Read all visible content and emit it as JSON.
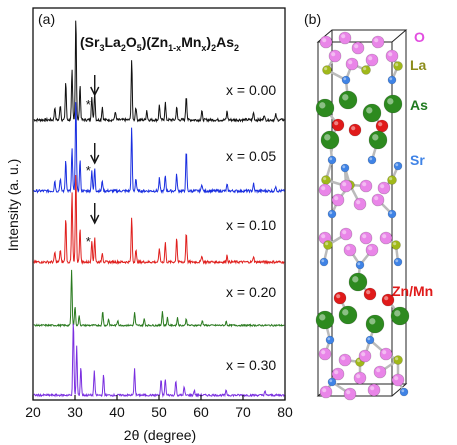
{
  "panel_a": {
    "label": "(a)",
    "title": {
      "a": "(Sr",
      "b": "3",
      "c": "La",
      "d": "2",
      "e": "O",
      "f": "5",
      "g": ")(Zn",
      "h": "1-x",
      "i": "Mn",
      "j": "x",
      "k": ")",
      "l": "2",
      "m": "As",
      "n": "2"
    },
    "xlabel": "2θ (degree)",
    "ylabel": "Intensity (a. u.)",
    "xticks": [
      "20",
      "30",
      "40",
      "50",
      "60",
      "70",
      "80"
    ]
  },
  "panel_b": {
    "label": "(b)",
    "atom_labels": [
      {
        "text": "O",
        "color": "#e24ee0"
      },
      {
        "text": "La",
        "color": "#8c8c1a"
      },
      {
        "text": "As",
        "color": "#1f7a1f"
      },
      {
        "text": "Sr",
        "color": "#3f83e6"
      },
      {
        "text": "Zn/Mn",
        "color": "#e01a1a"
      }
    ]
  },
  "chart_data": {
    "type": "line",
    "title": "(Sr3La2O5)(Zn1-xMnx)2As2",
    "xlabel": "2θ (degree)",
    "ylabel": "Intensity (a. u.)",
    "xlim": [
      20,
      80
    ],
    "series": [
      {
        "name": "x = 0.00",
        "color": "#111111",
        "peaks": [
          [
            25.2,
            0.12
          ],
          [
            26.5,
            0.14
          ],
          [
            27.8,
            0.35
          ],
          [
            29.3,
            0.45
          ],
          [
            30.2,
            0.95
          ],
          [
            31.2,
            0.32
          ],
          [
            34.0,
            0.22
          ],
          [
            34.7,
            0.26
          ],
          [
            36.5,
            0.12
          ],
          [
            39.6,
            0.08
          ],
          [
            43.5,
            0.55
          ],
          [
            44.5,
            0.12
          ],
          [
            47.1,
            0.09
          ],
          [
            50.1,
            0.14
          ],
          [
            51.5,
            0.16
          ],
          [
            54.2,
            0.12
          ],
          [
            56.5,
            0.22
          ],
          [
            60.2,
            0.08
          ],
          [
            66.2,
            0.08
          ],
          [
            72.5,
            0.07
          ],
          [
            75.0,
            0.05
          ],
          [
            77.8,
            0.05
          ]
        ]
      },
      {
        "name": "x = 0.05",
        "color": "#1a2fe0",
        "peaks": [
          [
            25.2,
            0.1
          ],
          [
            26.5,
            0.12
          ],
          [
            27.8,
            0.3
          ],
          [
            29.3,
            0.4
          ],
          [
            30.2,
            0.9
          ],
          [
            31.2,
            0.3
          ],
          [
            34.0,
            0.2
          ],
          [
            34.7,
            0.22
          ],
          [
            36.5,
            0.1
          ],
          [
            43.5,
            0.6
          ],
          [
            44.5,
            0.12
          ],
          [
            50.1,
            0.12
          ],
          [
            51.5,
            0.15
          ],
          [
            54.2,
            0.16
          ],
          [
            56.5,
            0.38
          ],
          [
            60.2,
            0.07
          ],
          [
            66.2,
            0.06
          ],
          [
            72.5,
            0.07
          ],
          [
            77.8,
            0.05
          ]
        ]
      },
      {
        "name": "x = 0.10",
        "color": "#e0201e",
        "peaks": [
          [
            25.2,
            0.1
          ],
          [
            26.5,
            0.12
          ],
          [
            27.8,
            0.45
          ],
          [
            29.3,
            0.7
          ],
          [
            30.2,
            0.9
          ],
          [
            31.2,
            0.35
          ],
          [
            34.0,
            0.22
          ],
          [
            34.7,
            0.25
          ],
          [
            36.5,
            0.1
          ],
          [
            43.5,
            0.45
          ],
          [
            44.5,
            0.12
          ],
          [
            50.1,
            0.14
          ],
          [
            51.5,
            0.2
          ],
          [
            54.2,
            0.25
          ],
          [
            56.5,
            0.3
          ],
          [
            60.2,
            0.07
          ],
          [
            66.2,
            0.07
          ],
          [
            72.5,
            0.06
          ]
        ]
      },
      {
        "name": "x = 0.20",
        "color": "#2a7a1f",
        "peaks": [
          [
            29.2,
            0.85
          ],
          [
            30.0,
            0.3
          ],
          [
            31.0,
            0.15
          ],
          [
            36.6,
            0.22
          ],
          [
            38.0,
            0.1
          ],
          [
            40.2,
            0.08
          ],
          [
            44.2,
            0.2
          ],
          [
            46.5,
            0.1
          ],
          [
            50.8,
            0.22
          ],
          [
            52.0,
            0.12
          ],
          [
            54.4,
            0.12
          ],
          [
            56.5,
            0.1
          ],
          [
            60.3,
            0.08
          ],
          [
            66.0,
            0.06
          ]
        ]
      },
      {
        "name": "x = 0.30",
        "color": "#7a2fe0",
        "peaks": [
          [
            29.6,
            0.92
          ],
          [
            30.4,
            0.6
          ],
          [
            31.4,
            0.35
          ],
          [
            34.6,
            0.3
          ],
          [
            36.8,
            0.25
          ],
          [
            44.2,
            0.32
          ],
          [
            50.5,
            0.18
          ],
          [
            51.5,
            0.2
          ],
          [
            54.0,
            0.18
          ],
          [
            56.0,
            0.1
          ],
          [
            58.4,
            0.06
          ],
          [
            66.0,
            0.06
          ],
          [
            75.2,
            0.05
          ]
        ]
      }
    ],
    "series_labels": [
      "x = 0.00",
      "x = 0.05",
      "x = 0.10",
      "x = 0.20",
      "x = 0.30"
    ],
    "annotations": {
      "star": "*",
      "arrow_x": 34.7
    }
  }
}
